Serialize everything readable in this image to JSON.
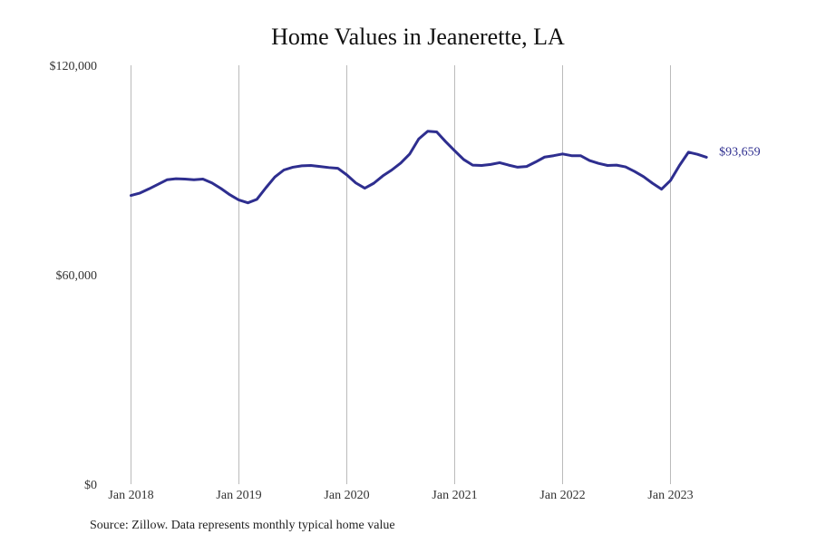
{
  "chart_data": {
    "type": "line",
    "title": "Home Values in Jeanerette, LA",
    "source": "Source: Zillow. Data represents monthly typical home value",
    "line_color": "#2e2e8f",
    "grid_color": "#bbbbbb",
    "ylim": [
      0,
      120000
    ],
    "y_ticks": [
      {
        "value": 0,
        "label": "$0"
      },
      {
        "value": 60000,
        "label": "$60,000"
      },
      {
        "value": 120000,
        "label": "$120,000"
      }
    ],
    "x_ticks": [
      {
        "value": "2018-01",
        "label": "Jan 2018"
      },
      {
        "value": "2019-01",
        "label": "Jan 2019"
      },
      {
        "value": "2020-01",
        "label": "Jan 2020"
      },
      {
        "value": "2021-01",
        "label": "Jan 2021"
      },
      {
        "value": "2022-01",
        "label": "Jan 2022"
      },
      {
        "value": "2023-01",
        "label": "Jan 2023"
      }
    ],
    "x_grid": "vertical lines at each January",
    "end_label": "$93,659",
    "series": [
      {
        "x": [
          "2018-01",
          "2018-02",
          "2018-03",
          "2018-04",
          "2018-05",
          "2018-06",
          "2018-07",
          "2018-08",
          "2018-09",
          "2018-10",
          "2018-11",
          "2018-12",
          "2019-01",
          "2019-02",
          "2019-03",
          "2019-04",
          "2019-05",
          "2019-06",
          "2019-07",
          "2019-08",
          "2019-09",
          "2019-10",
          "2019-11",
          "2019-12",
          "2020-01",
          "2020-02",
          "2020-03",
          "2020-04",
          "2020-05",
          "2020-06",
          "2020-07",
          "2020-08",
          "2020-09",
          "2020-10",
          "2020-11",
          "2020-12",
          "2021-01",
          "2021-02",
          "2021-03",
          "2021-04",
          "2021-05",
          "2021-06",
          "2021-07",
          "2021-08",
          "2021-09",
          "2021-10",
          "2021-11",
          "2021-12",
          "2022-01",
          "2022-02",
          "2022-03",
          "2022-04",
          "2022-05",
          "2022-06",
          "2022-07",
          "2022-08",
          "2022-09",
          "2022-10",
          "2022-11",
          "2022-12",
          "2023-01",
          "2023-02",
          "2023-03",
          "2023-04",
          "2023-05"
        ],
        "y": [
          82700,
          83400,
          84600,
          85900,
          87200,
          87500,
          87400,
          87200,
          87400,
          86300,
          84700,
          82900,
          81400,
          80600,
          81600,
          84900,
          88000,
          90000,
          90800,
          91200,
          91300,
          91000,
          90700,
          90500,
          88600,
          86300,
          84800,
          86200,
          88300,
          90000,
          92000,
          94600,
          98900,
          101100,
          100900,
          98100,
          95500,
          93000,
          91400,
          91300,
          91600,
          92100,
          91400,
          90800,
          91000,
          92300,
          93700,
          94100,
          94600,
          94100,
          94100,
          92700,
          91900,
          91300,
          91400,
          90900,
          89600,
          88100,
          86200,
          84500,
          87000,
          91300,
          95100,
          94500,
          93659
        ]
      }
    ]
  }
}
